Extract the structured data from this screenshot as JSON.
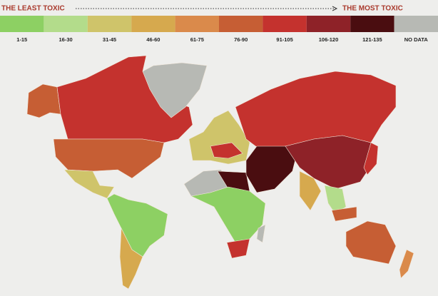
{
  "legend": {
    "left_label": "THE LEAST TOXIC",
    "right_label": "THE MOST TOXIC",
    "bins": [
      {
        "label": "1-15",
        "color": "#8dd063"
      },
      {
        "label": "16-30",
        "color": "#b3dc8b"
      },
      {
        "label": "31-45",
        "color": "#cfc46a"
      },
      {
        "label": "46-60",
        "color": "#d6a94e"
      },
      {
        "label": "61-75",
        "color": "#da8a4b"
      },
      {
        "label": "76-90",
        "color": "#c65e34"
      },
      {
        "label": "91-105",
        "color": "#c4322e"
      },
      {
        "label": "106-120",
        "color": "#8e2228"
      },
      {
        "label": "121-135",
        "color": "#4a0d10"
      },
      {
        "label": "NO DATA",
        "color": "#b7b9b4"
      }
    ]
  }
}
